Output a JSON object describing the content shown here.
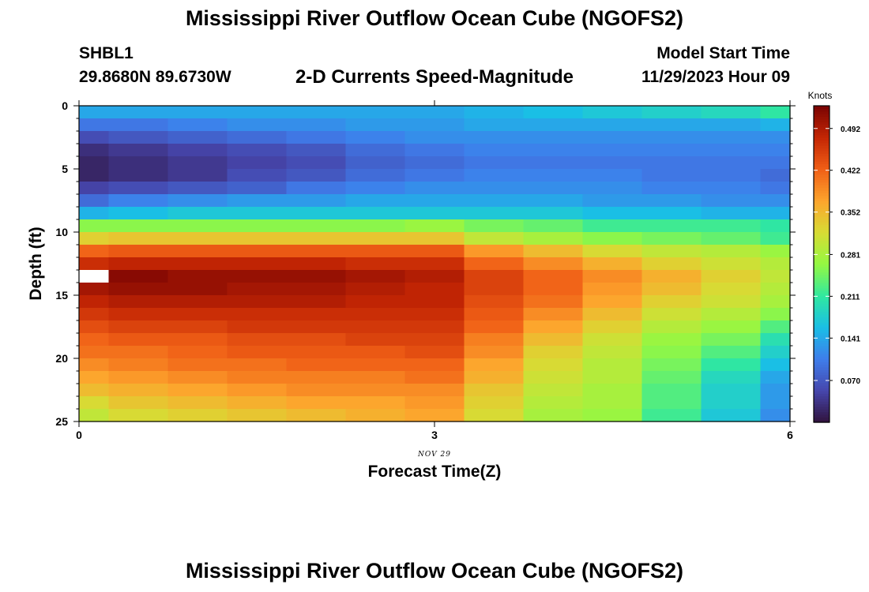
{
  "page": {
    "title_top": "Mississippi River Outflow Ocean Cube (NGOFS2)",
    "title_bottom": "Mississippi River Outflow Ocean Cube (NGOFS2)",
    "station_id": "SHBL1",
    "station_coords": "29.8680N  89.6730W",
    "model_start_label": "Model Start Time",
    "model_start_value": "11/29/2023 Hour 09"
  },
  "chart_data": {
    "type": "heatmap",
    "title": "2-D Currents Speed-Magnitude",
    "xlabel": "Forecast Time(Z)",
    "ylabel": "Depth (ft)",
    "x_sublabel": "NOV 29",
    "xlim": [
      0,
      6
    ],
    "ylim": [
      0,
      25
    ],
    "x_ticks": [
      0,
      3,
      6
    ],
    "y_ticks": [
      0,
      5,
      10,
      15,
      20,
      25
    ],
    "x_bins": [
      0,
      0.25,
      0.75,
      1.25,
      1.75,
      2.25,
      2.75,
      3.25,
      3.75,
      4.25,
      4.75,
      5.25,
      5.75,
      6
    ],
    "y_bins": [
      0,
      1,
      2,
      3,
      4,
      5,
      6,
      7,
      8,
      9,
      10,
      11,
      12,
      13,
      14,
      15,
      16,
      17,
      18,
      19,
      20,
      21,
      22,
      23,
      24,
      25
    ],
    "missing_value": null,
    "values": [
      [
        0.14,
        0.14,
        0.14,
        0.14,
        0.14,
        0.14,
        0.14,
        0.15,
        0.16,
        0.17,
        0.18,
        0.19,
        0.21
      ],
      [
        0.1,
        0.1,
        0.11,
        0.12,
        0.12,
        0.13,
        0.13,
        0.14,
        0.14,
        0.14,
        0.14,
        0.14,
        0.15
      ],
      [
        0.06,
        0.07,
        0.08,
        0.09,
        0.1,
        0.11,
        0.12,
        0.12,
        0.12,
        0.12,
        0.12,
        0.12,
        0.12
      ],
      [
        0.03,
        0.04,
        0.05,
        0.06,
        0.07,
        0.09,
        0.1,
        0.11,
        0.11,
        0.11,
        0.11,
        0.11,
        0.11
      ],
      [
        0.02,
        0.03,
        0.04,
        0.05,
        0.06,
        0.08,
        0.09,
        0.1,
        0.1,
        0.1,
        0.1,
        0.1,
        0.1
      ],
      [
        0.02,
        0.03,
        0.04,
        0.06,
        0.07,
        0.09,
        0.1,
        0.11,
        0.11,
        0.11,
        0.1,
        0.1,
        0.09
      ],
      [
        0.05,
        0.06,
        0.07,
        0.08,
        0.1,
        0.11,
        0.12,
        0.12,
        0.12,
        0.12,
        0.11,
        0.11,
        0.1
      ],
      [
        0.09,
        0.11,
        0.12,
        0.13,
        0.13,
        0.14,
        0.14,
        0.14,
        0.14,
        0.13,
        0.13,
        0.12,
        0.12
      ],
      [
        0.15,
        0.16,
        0.17,
        0.17,
        0.17,
        0.17,
        0.17,
        0.17,
        0.17,
        0.16,
        0.16,
        0.15,
        0.15
      ],
      [
        0.26,
        0.26,
        0.26,
        0.26,
        0.26,
        0.26,
        0.27,
        0.25,
        0.24,
        0.22,
        0.22,
        0.22,
        0.21
      ],
      [
        0.33,
        0.34,
        0.34,
        0.34,
        0.34,
        0.34,
        0.34,
        0.3,
        0.28,
        0.26,
        0.25,
        0.24,
        0.22
      ],
      [
        0.42,
        0.43,
        0.43,
        0.43,
        0.43,
        0.43,
        0.43,
        0.38,
        0.35,
        0.32,
        0.3,
        0.29,
        0.27
      ],
      [
        0.47,
        0.48,
        0.48,
        0.48,
        0.48,
        0.47,
        0.47,
        0.42,
        0.39,
        0.36,
        0.33,
        0.31,
        0.29
      ],
      [
        null,
        0.52,
        0.51,
        0.51,
        0.51,
        0.5,
        0.49,
        0.45,
        0.42,
        0.39,
        0.36,
        0.33,
        0.3
      ],
      [
        0.5,
        0.51,
        0.51,
        0.5,
        0.5,
        0.49,
        0.48,
        0.45,
        0.42,
        0.38,
        0.35,
        0.32,
        0.29
      ],
      [
        0.48,
        0.49,
        0.49,
        0.49,
        0.49,
        0.48,
        0.48,
        0.44,
        0.41,
        0.37,
        0.33,
        0.31,
        0.28
      ],
      [
        0.46,
        0.47,
        0.47,
        0.47,
        0.47,
        0.47,
        0.47,
        0.43,
        0.39,
        0.35,
        0.31,
        0.29,
        0.26
      ],
      [
        0.44,
        0.45,
        0.45,
        0.46,
        0.46,
        0.46,
        0.46,
        0.42,
        0.37,
        0.33,
        0.29,
        0.27,
        0.23
      ],
      [
        0.42,
        0.43,
        0.43,
        0.44,
        0.44,
        0.45,
        0.45,
        0.4,
        0.35,
        0.31,
        0.27,
        0.25,
        0.2
      ],
      [
        0.41,
        0.41,
        0.42,
        0.43,
        0.43,
        0.43,
        0.44,
        0.39,
        0.33,
        0.3,
        0.26,
        0.23,
        0.18
      ],
      [
        0.39,
        0.4,
        0.41,
        0.41,
        0.42,
        0.42,
        0.42,
        0.37,
        0.32,
        0.29,
        0.25,
        0.21,
        0.16
      ],
      [
        0.37,
        0.38,
        0.39,
        0.4,
        0.4,
        0.4,
        0.41,
        0.36,
        0.31,
        0.29,
        0.24,
        0.19,
        0.14
      ],
      [
        0.35,
        0.36,
        0.37,
        0.38,
        0.39,
        0.39,
        0.39,
        0.34,
        0.3,
        0.28,
        0.23,
        0.18,
        0.13
      ],
      [
        0.32,
        0.34,
        0.35,
        0.36,
        0.37,
        0.37,
        0.38,
        0.33,
        0.29,
        0.28,
        0.23,
        0.18,
        0.13
      ],
      [
        0.3,
        0.32,
        0.33,
        0.34,
        0.35,
        0.36,
        0.37,
        0.32,
        0.28,
        0.27,
        0.22,
        0.17,
        0.12
      ]
    ],
    "colorbar": {
      "label": "Knots",
      "min": 0.0,
      "max": 0.53,
      "ticks": [
        0.07,
        0.141,
        0.211,
        0.281,
        0.352,
        0.422,
        0.492
      ],
      "tick_labels": [
        "0.070",
        "0.141",
        "0.211",
        "0.281",
        "0.352",
        "0.422",
        "0.492"
      ]
    }
  }
}
